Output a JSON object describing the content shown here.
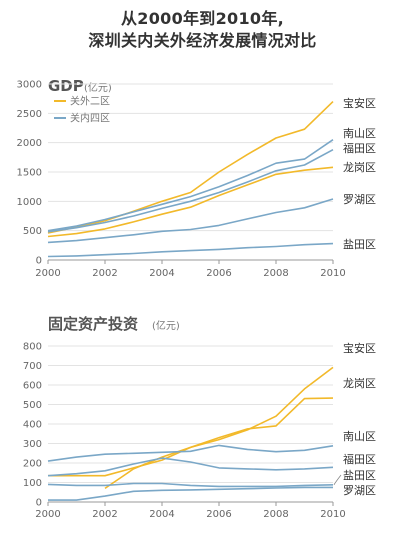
{
  "title": {
    "line1": "从2000年到2010年,",
    "line2": "深圳关内关外经济发展情况对比"
  },
  "colors": {
    "outer": "#f2b92a",
    "inner": "#7aa7c7",
    "grid": "#e3e3e3",
    "axis": "#999999"
  },
  "chart_data": [
    {
      "type": "line",
      "title": "GDP",
      "unit": "(亿元)",
      "x": [
        2000,
        2001,
        2002,
        2003,
        2004,
        2005,
        2006,
        2007,
        2008,
        2009,
        2010
      ],
      "xticks": [
        "2000",
        "2002",
        "2004",
        "2006",
        "2008",
        "2010"
      ],
      "yticks": [
        "0",
        "500",
        "1000",
        "1500",
        "2000",
        "2500",
        "3000"
      ],
      "ylim": [
        0,
        3000
      ],
      "grid": true,
      "legend": [
        {
          "label": "关外二区",
          "group": "outer"
        },
        {
          "label": "关内四区",
          "group": "inner"
        }
      ],
      "series": [
        {
          "name": "宝安区",
          "group": "outer",
          "values": [
            460,
            560,
            670,
            830,
            1000,
            1150,
            1500,
            1800,
            2080,
            2230,
            2700
          ]
        },
        {
          "name": "龙岗区",
          "group": "outer",
          "values": [
            400,
            450,
            530,
            650,
            780,
            900,
            1100,
            1280,
            1460,
            1530,
            1580
          ]
        },
        {
          "name": "南山区",
          "group": "inner",
          "values": [
            500,
            580,
            690,
            820,
            950,
            1080,
            1250,
            1440,
            1650,
            1720,
            2050
          ]
        },
        {
          "name": "福田区",
          "group": "inner",
          "values": [
            480,
            550,
            640,
            750,
            880,
            1000,
            1150,
            1330,
            1520,
            1620,
            1880
          ]
        },
        {
          "name": "罗湖区",
          "group": "inner",
          "values": [
            300,
            330,
            380,
            430,
            490,
            520,
            590,
            700,
            810,
            890,
            1040
          ]
        },
        {
          "name": "盐田区",
          "group": "inner",
          "values": [
            60,
            70,
            90,
            110,
            140,
            160,
            180,
            210,
            230,
            260,
            280
          ]
        }
      ]
    },
    {
      "type": "line",
      "title": "固定资产投资",
      "unit": "(亿元)",
      "x": [
        2000,
        2001,
        2002,
        2003,
        2004,
        2005,
        2006,
        2007,
        2008,
        2009,
        2010
      ],
      "xticks": [
        "2000",
        "2002",
        "2004",
        "2006",
        "2008",
        "2010"
      ],
      "yticks": [
        "0",
        "100",
        "200",
        "300",
        "400",
        "500",
        "600",
        "700",
        "800"
      ],
      "ylim": [
        0,
        800
      ],
      "grid": true,
      "series": [
        {
          "name": "宝安区",
          "group": "outer",
          "values": [
            null,
            null,
            70,
            170,
            230,
            280,
            320,
            370,
            440,
            580,
            690
          ]
        },
        {
          "name": "龙岗区",
          "group": "outer",
          "values": [
            135,
            135,
            135,
            175,
            215,
            280,
            330,
            375,
            390,
            530,
            533
          ]
        },
        {
          "name": "南山区",
          "group": "inner",
          "values": [
            210,
            230,
            245,
            250,
            255,
            260,
            290,
            270,
            258,
            265,
            288
          ]
        },
        {
          "name": "福田区",
          "group": "inner",
          "values": [
            135,
            145,
            160,
            195,
            225,
            205,
            175,
            170,
            165,
            170,
            178
          ]
        },
        {
          "name": "盐田区",
          "group": "inner",
          "values": [
            90,
            85,
            85,
            95,
            95,
            85,
            80,
            80,
            80,
            85,
            88
          ]
        },
        {
          "name": "罗湖区",
          "group": "inner",
          "values": [
            10,
            10,
            30,
            55,
            60,
            62,
            65,
            68,
            72,
            75,
            75
          ]
        }
      ]
    }
  ]
}
